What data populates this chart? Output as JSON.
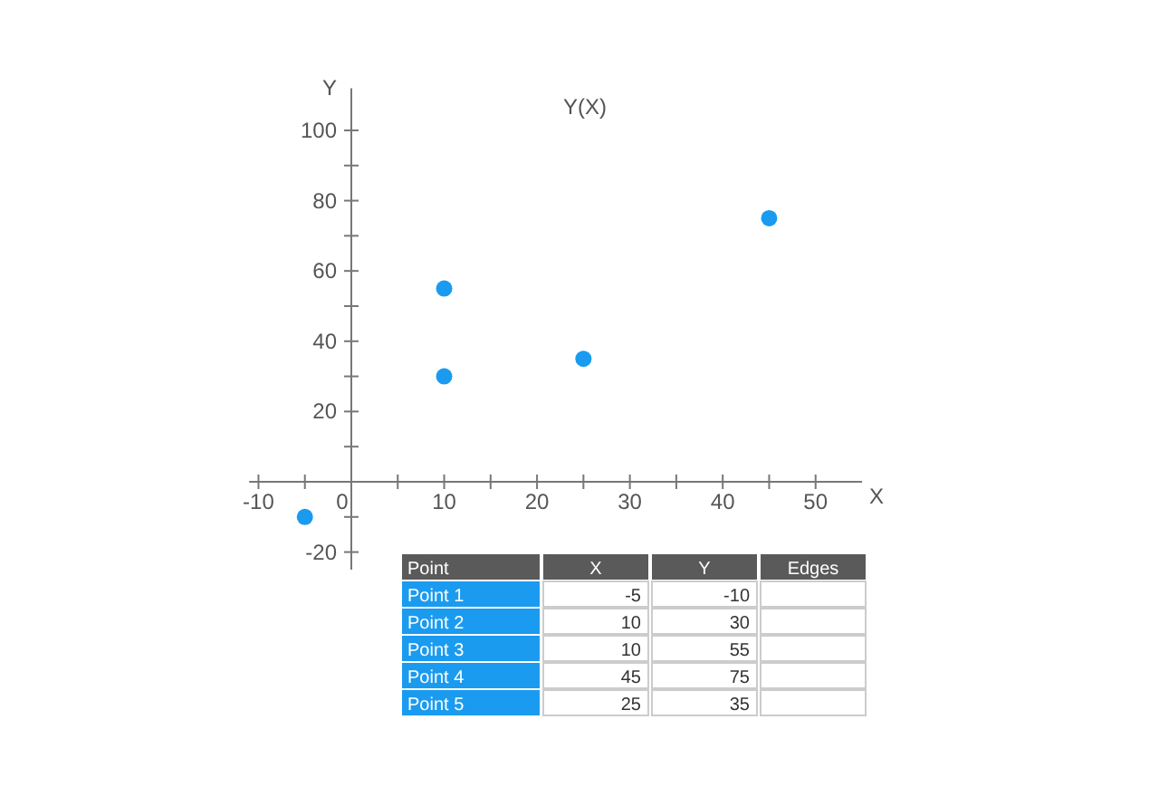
{
  "chart_data": [
    {
      "type": "scatter",
      "title": "Y(X)",
      "xlabel": "X",
      "ylabel": "Y",
      "x": [
        -5,
        10,
        10,
        45,
        25
      ],
      "values": [
        -10,
        30,
        55,
        75,
        35
      ],
      "color": "#1a9bf0",
      "marker": "circle",
      "grid": false,
      "xlim": [
        -11,
        55
      ],
      "ylim": [
        -25,
        112
      ],
      "xticks": [
        -10,
        {
          "value": -5,
          "label": null
        },
        {
          "value": 0,
          "label": "0"
        },
        {
          "value": 5,
          "label": null
        },
        10,
        {
          "value": 15,
          "label": null
        },
        20,
        {
          "value": 25,
          "label": null
        },
        30,
        {
          "value": 35,
          "label": null
        },
        40,
        {
          "value": 45,
          "label": null
        },
        50
      ],
      "yticks": [
        -20,
        {
          "value": -10,
          "label": null
        },
        {
          "value": 0,
          "label": null
        },
        {
          "value": 10,
          "label": null
        },
        20,
        {
          "value": 30,
          "label": null
        },
        40,
        {
          "value": 50,
          "label": null
        },
        60,
        {
          "value": 70,
          "label": null
        },
        80,
        {
          "value": 90,
          "label": null
        },
        100
      ]
    },
    {
      "type": "other",
      "legend_title": "Point",
      "categories": [
        "Point 1",
        "Point 2",
        "Point 3",
        "Point 4",
        "Point 5"
      ],
      "series": [
        {
          "name": "X",
          "values": [
            -5,
            10,
            10,
            45,
            25
          ]
        },
        {
          "name": "Y",
          "values": [
            -10,
            30,
            55,
            75,
            35
          ]
        }
      ],
      "annotations": [
        "Edges"
      ],
      "data_labels": true
    }
  ]
}
